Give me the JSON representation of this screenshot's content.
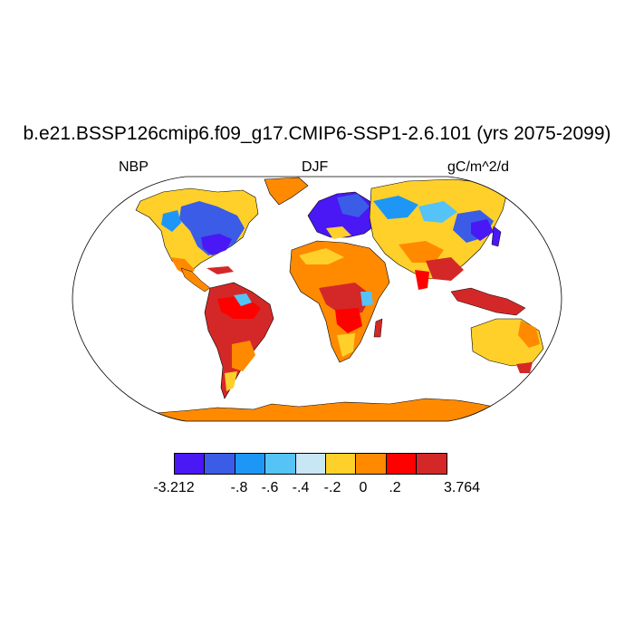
{
  "title": "b.e21.BSSP126cmip6.f09_g17.CMIP6-SSP1-2.6.101 (yrs 2075-2099)",
  "left_label": "NBP",
  "center_label": "DJF",
  "right_label": "gC/m^2/d",
  "colorbar": {
    "colors": [
      "#4a17f5",
      "#3a5ce6",
      "#1e96f5",
      "#55c3f5",
      "#c9e6f5",
      "#ffd02a",
      "#ff8a00",
      "#ff0000",
      "#d42828"
    ],
    "labels": [
      "-3.212",
      "-.8",
      "-.6",
      "-.4",
      "-.2",
      "0",
      ".2",
      "3.764"
    ]
  }
}
